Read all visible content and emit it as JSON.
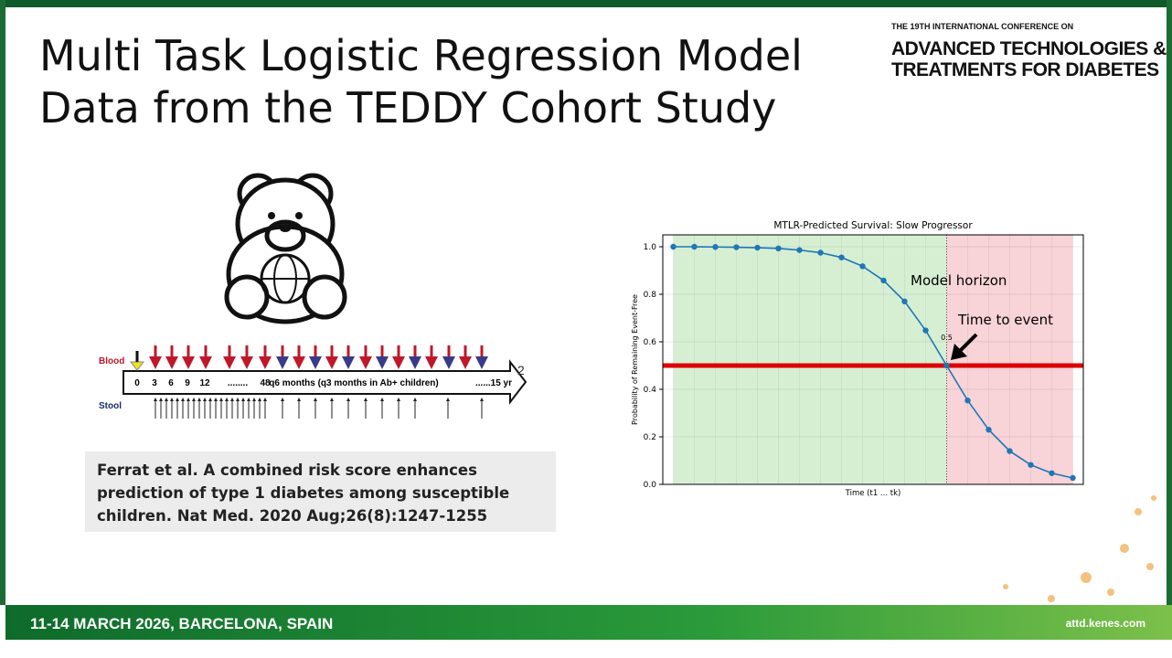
{
  "header": {
    "title": [
      "Multi Task Logistic Regression Model",
      "Data from the TEDDY Cohort Study"
    ],
    "conference": [
      "THE 19TH INTERNATIONAL CONFERENCE ON",
      "ADVANCED TECHNOLOGIES &",
      "TREATMENTS FOR DIABETES"
    ]
  },
  "timeline": {
    "blood": "Blood",
    "stool": "Stool",
    "labels": [
      "0",
      "3",
      "6",
      "9",
      "12",
      "........",
      "48",
      "q6 months (q3 months  in Ab+ children)",
      "......15 yr"
    ],
    "page_mark": "2"
  },
  "citation": "Ferrat et al. A combined risk score enhances prediction of type 1 diabetes among susceptible children. Nat Med. 2020 Aug;26(8):1247-1255",
  "chart_data": {
    "type": "line",
    "title": "MTLR-Predicted Survival: Slow Progressor",
    "x_label": "Time (t1 ... tk)",
    "y_label": "Probability of Remaining Event-Free",
    "categories": [
      null,
      null,
      null,
      null,
      null,
      null,
      null,
      null,
      null,
      null,
      null,
      null,
      null,
      null,
      null,
      null,
      null,
      null,
      null,
      null
    ],
    "series": [
      {
        "color": "#1f77b4",
        "values": [
          1.0,
          1.0,
          0.999,
          0.998,
          0.996,
          0.993,
          0.986,
          0.975,
          0.955,
          0.918,
          0.858,
          0.77,
          0.648,
          0.5,
          0.353,
          0.23,
          0.14,
          0.082,
          0.047,
          0.027
        ]
      }
    ],
    "ylim": [
      0,
      1.05
    ],
    "yticks": [
      {
        "value": 0,
        "label": "0.0"
      },
      {
        "value": 0.2,
        "label": "0.2"
      },
      {
        "value": 0.4,
        "label": "0.4"
      },
      {
        "value": 0.6,
        "label": "0.6"
      },
      {
        "value": 0.8,
        "label": "0.8"
      },
      {
        "value": 1,
        "label": "1.0"
      }
    ],
    "grid": true,
    "threshold": {
      "value": 0.5,
      "label": "0.5",
      "color": "#dd0000"
    },
    "shading": {
      "before": "#d6efd3",
      "after": "#f8d3d7"
    },
    "annotations": [
      "Model horizon",
      "Time to event"
    ]
  },
  "footer": {
    "dates": "11-14 MARCH 2026, BARCELONA, SPAIN",
    "url": "attd.kenes.com"
  }
}
